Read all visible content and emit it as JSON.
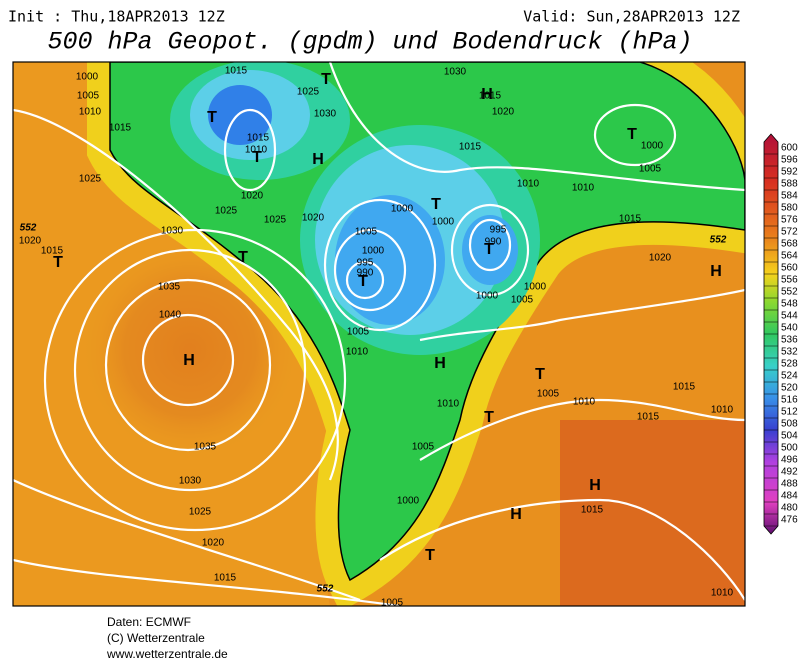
{
  "header": {
    "init": "Init : Thu,18APR2013 12Z",
    "valid": "Valid: Sun,28APR2013 12Z",
    "title": "500 hPa Geopot. (gpdm) und Bodendruck (hPa)"
  },
  "map": {
    "isobar_labels": [
      1000,
      1005,
      1010,
      1015,
      1025,
      1015,
      1025,
      1030,
      1015,
      1010,
      1020,
      1025,
      1025,
      1020,
      1030,
      1015,
      1020,
      1015,
      1010,
      1010,
      1000,
      1005,
      1015,
      1020,
      1000,
      1000,
      1005,
      1000,
      995,
      990,
      995,
      990,
      1000,
      1005,
      1000,
      1035,
      1040,
      1030,
      1020,
      1015,
      1005,
      1010,
      1010,
      1005,
      1005,
      1010,
      1015,
      1015,
      1010,
      1000,
      1015,
      1035,
      1030,
      1025,
      1020,
      1015,
      1010,
      1005
    ],
    "contour_labels": [
      552,
      552,
      552
    ],
    "pressure_centers": [
      "T",
      "T",
      "H",
      "T",
      "H",
      "T",
      "T",
      "T",
      "T",
      "T",
      "H",
      "H",
      "T",
      "T",
      "H",
      "H",
      "T",
      "T",
      "H"
    ]
  },
  "colorbar": {
    "labels": [
      600,
      596,
      592,
      588,
      584,
      580,
      576,
      572,
      568,
      564,
      560,
      556,
      552,
      548,
      544,
      540,
      536,
      532,
      528,
      524,
      520,
      516,
      512,
      508,
      504,
      500,
      496,
      492,
      488,
      484,
      480,
      476
    ]
  },
  "footer": {
    "source": "Daten: ECMWF",
    "copyright": "(C) Wetterzentrale",
    "url": "www.wetterzentrale.de"
  }
}
